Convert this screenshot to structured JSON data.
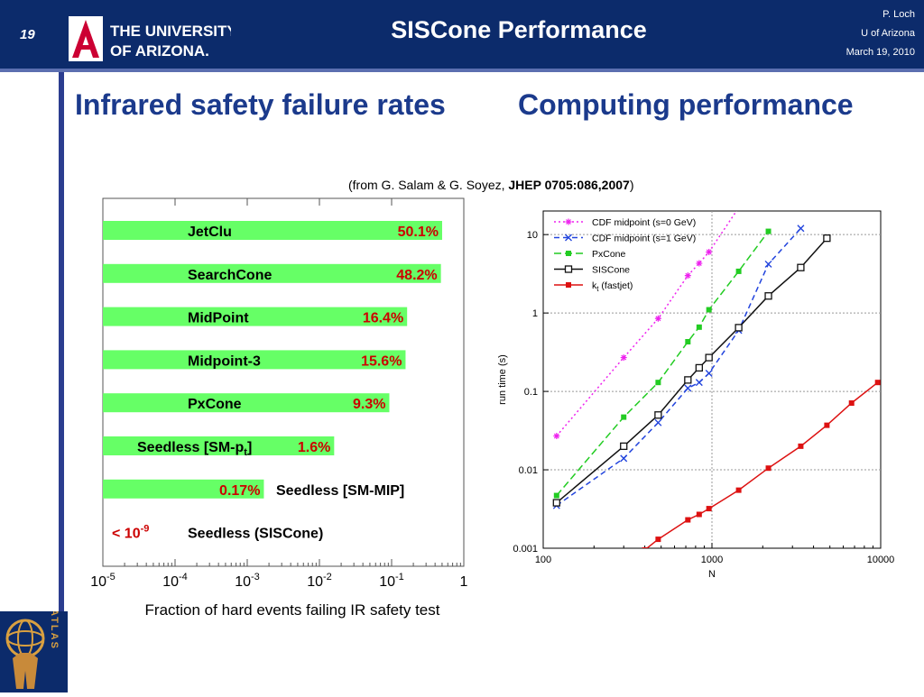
{
  "header": {
    "slide_number": "19",
    "title": "SISCone Performance",
    "author": "P. Loch",
    "affiliation": "U of Arizona",
    "date": "March 19, 2010",
    "logo_text_line1": "THE UNIVERSITY",
    "logo_text_line2": "OF ARIZONA."
  },
  "headings": {
    "left": "Infrared safety failure rates",
    "right": "Computing performance"
  },
  "citation": {
    "prefix": "(from G. Salam & G. Soyez, ",
    "ref": "JHEP 0705:086,2007",
    "suffix": ")"
  },
  "atlas_text": "ATLAS",
  "colors": {
    "header_bg": "#0c2b6b",
    "heading": "#1b3a8c",
    "bar": "#66ff66",
    "pct": "#cc0000"
  },
  "chart_data": [
    {
      "type": "bar",
      "orientation": "horizontal",
      "xscale": "log",
      "xlim": [
        1e-05,
        1
      ],
      "xticks": [
        "10-5",
        "10-4",
        "10-3",
        "10-2",
        "10-1",
        "1"
      ],
      "xlabel": "Fraction of hard events failing IR safety test",
      "categories": [
        "JetClu",
        "SearchCone",
        "MidPoint",
        "Midpoint-3",
        "PxCone",
        "Seedless [SM-pt]",
        "Seedless [SM-MIP]",
        "Seedless (SISCone)"
      ],
      "values": [
        0.501,
        0.482,
        0.164,
        0.156,
        0.093,
        0.016,
        0.0017,
        0
      ],
      "value_labels": [
        "50.1%",
        "48.2%",
        "16.4%",
        "15.6%",
        "9.3%",
        "1.6%",
        "0.17%",
        "< 10-9"
      ]
    },
    {
      "type": "line",
      "xscale": "log",
      "yscale": "log",
      "xlim": [
        100,
        10000
      ],
      "ylim": [
        0.001,
        20
      ],
      "xlabel": "N",
      "ylabel": "run time (s)",
      "xticks": [
        "100",
        "1000",
        "10000"
      ],
      "yticks": [
        "0.001",
        "0.01",
        "0.1",
        "1",
        "10"
      ],
      "grid": true,
      "legend": "top-left",
      "series": [
        {
          "name": "CDF midpoint (s=0 GeV)",
          "color": "#ee22ee",
          "dash": "2,3",
          "marker": "star",
          "x": [
            120,
            300,
            480,
            720,
            840,
            960,
            1440
          ],
          "y": [
            0.027,
            0.27,
            0.85,
            3.0,
            4.3,
            6.0,
            22
          ]
        },
        {
          "name": "CDF midpoint (s=1 GeV)",
          "color": "#2244dd",
          "dash": "6,4",
          "marker": "x",
          "x": [
            120,
            300,
            480,
            720,
            840,
            960,
            1440,
            2160,
            3360
          ],
          "y": [
            0.0035,
            0.014,
            0.04,
            0.11,
            0.13,
            0.17,
            0.6,
            4.2,
            12
          ]
        },
        {
          "name": "PxCone",
          "color": "#22cc22",
          "dash": "8,4",
          "marker": "square",
          "x": [
            120,
            300,
            480,
            720,
            840,
            960,
            1440,
            2160
          ],
          "y": [
            0.0047,
            0.047,
            0.13,
            0.43,
            0.66,
            1.1,
            3.4,
            11
          ]
        },
        {
          "name": "SISCone",
          "color": "#111111",
          "dash": "",
          "marker": "open-square",
          "x": [
            120,
            300,
            480,
            720,
            840,
            960,
            1440,
            2160,
            3360,
            4800
          ],
          "y": [
            0.0038,
            0.02,
            0.05,
            0.14,
            0.2,
            0.27,
            0.65,
            1.65,
            3.8,
            9
          ]
        },
        {
          "name": "kt (fastjet)",
          "color": "#dd1111",
          "dash": "",
          "marker": "square",
          "x": [
            400,
            480,
            720,
            840,
            960,
            1440,
            2160,
            3360,
            4800,
            6720,
            9600
          ],
          "y": [
            0.00095,
            0.0013,
            0.0023,
            0.0027,
            0.0032,
            0.0055,
            0.0105,
            0.02,
            0.037,
            0.071,
            0.13
          ]
        }
      ]
    }
  ]
}
